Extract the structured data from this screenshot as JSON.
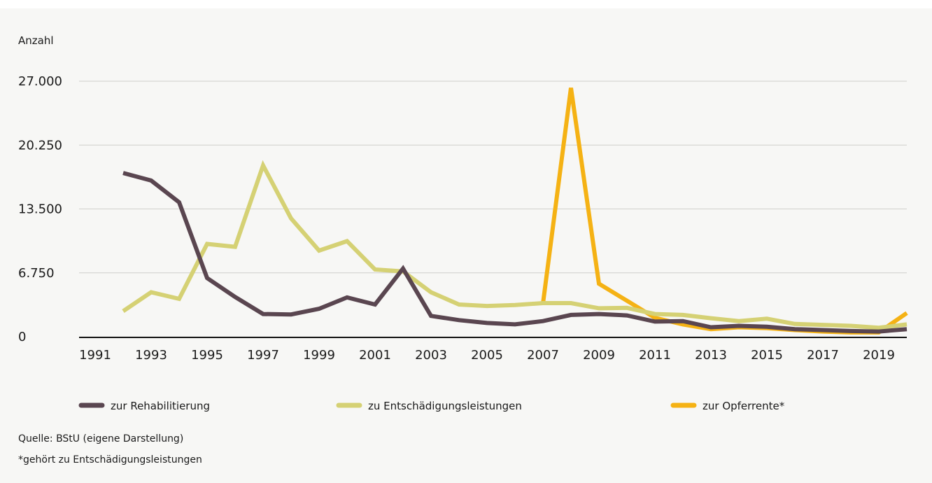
{
  "chart_data": {
    "type": "line",
    "ylabel": "Anzahl",
    "ylim": [
      0,
      27000
    ],
    "yticks": [
      "0",
      "6.750",
      "13.500",
      "20.250",
      "27.000"
    ],
    "ytick_values": [
      0,
      6750,
      13500,
      20250,
      27000
    ],
    "xlim": [
      1991,
      2020
    ],
    "xticks": [
      "1991",
      "1993",
      "1995",
      "1997",
      "1999",
      "2001",
      "2003",
      "2005",
      "2007",
      "2009",
      "2011",
      "2013",
      "2015",
      "2017",
      "2019"
    ],
    "grid": true,
    "legend_position": "bottom",
    "series": [
      {
        "name": "zur Rehabilitierung",
        "color": "#5a4650",
        "x": [
          1992,
          1993,
          1994,
          1995,
          1996,
          1997,
          1998,
          1999,
          2000,
          2001,
          2002,
          2003,
          2004,
          2005,
          2006,
          2007,
          2008,
          2009,
          2010,
          2011,
          2012,
          2013,
          2014,
          2015,
          2016,
          2017,
          2018,
          2019,
          2020
        ],
        "values": [
          17300,
          16500,
          14200,
          6200,
          4200,
          2400,
          2350,
          2950,
          4150,
          3400,
          7200,
          2200,
          1750,
          1450,
          1300,
          1650,
          2300,
          2400,
          2250,
          1600,
          1650,
          1000,
          1150,
          1050,
          800,
          700,
          600,
          550,
          800
        ]
      },
      {
        "name": "zu Entschädigungsleistungen",
        "color": "#d5d174",
        "x": [
          1992,
          1993,
          1994,
          1995,
          1996,
          1997,
          1998,
          1999,
          2000,
          2001,
          2002,
          2003,
          2004,
          2005,
          2006,
          2007,
          2008,
          2009,
          2010,
          2011,
          2012,
          2013,
          2014,
          2015,
          2016,
          2017,
          2018,
          2019,
          2020
        ],
        "values": [
          2700,
          4700,
          4000,
          9800,
          9500,
          18100,
          12500,
          9100,
          10100,
          7100,
          6900,
          4700,
          3400,
          3250,
          3350,
          3550,
          3550,
          3000,
          3050,
          2400,
          2300,
          1950,
          1650,
          1900,
          1350,
          1250,
          1150,
          950,
          1300
        ]
      },
      {
        "name": "zur Opferrente*",
        "color": "#f5b214",
        "x": [
          2007,
          2008,
          2009,
          2010,
          2011,
          2012,
          2013,
          2014,
          2015,
          2016,
          2017,
          2018,
          2019,
          2020
        ],
        "values": [
          3500,
          26300,
          5600,
          3800,
          2000,
          1300,
          800,
          1000,
          900,
          700,
          550,
          450,
          450,
          2500
        ]
      }
    ]
  },
  "footer": {
    "source": "Quelle: BStU (eigene Darstellung)",
    "note": "*gehört zu Entschädigungsleistungen"
  }
}
